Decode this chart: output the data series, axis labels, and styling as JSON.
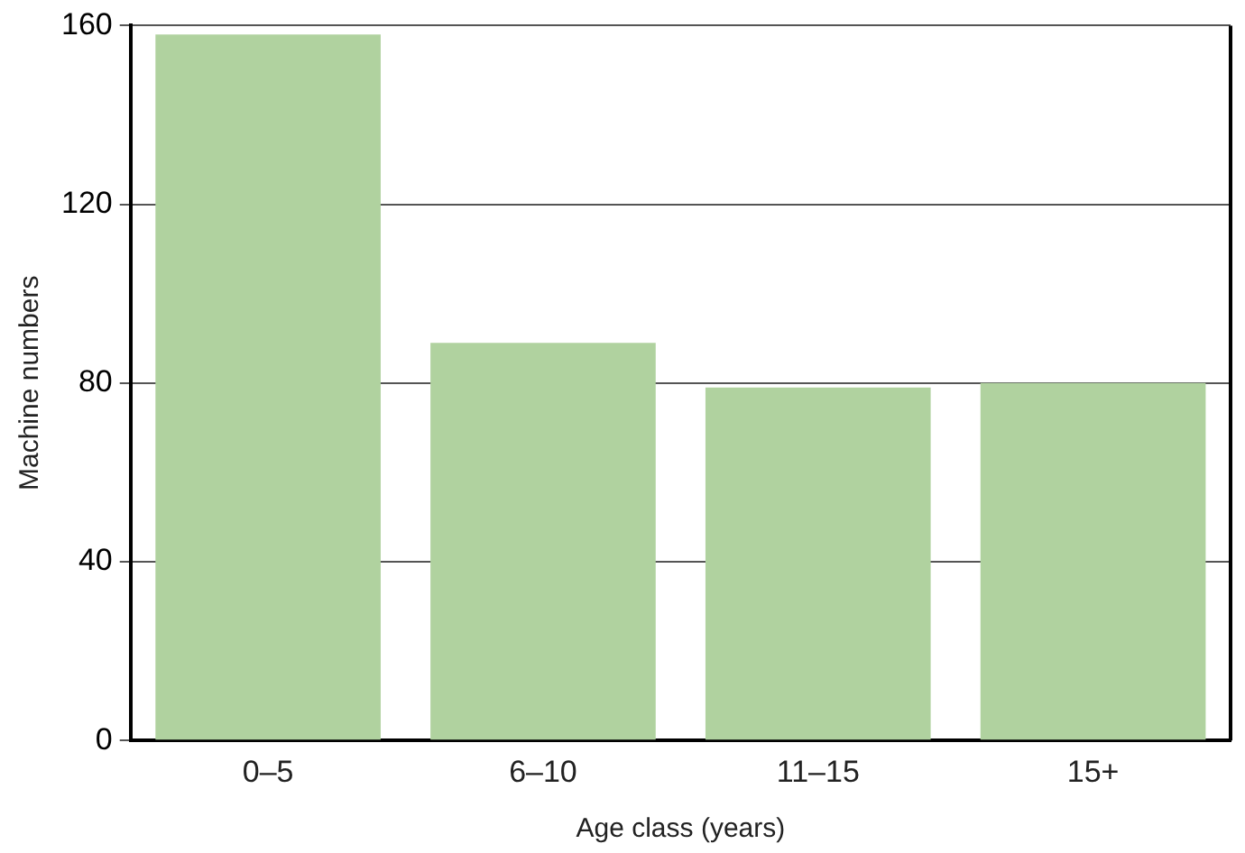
{
  "chart_data": {
    "type": "bar",
    "xlabel": "Age class (years)",
    "ylabel": "Machine numbers",
    "categories": [
      "0–5",
      "6–10",
      "11–15",
      "15+"
    ],
    "values": [
      158,
      89,
      79,
      80
    ],
    "color": "#b0d29f",
    "ylim": [
      0,
      160
    ],
    "yticks": [
      0,
      40,
      80,
      120,
      160
    ],
    "grid": "y"
  }
}
